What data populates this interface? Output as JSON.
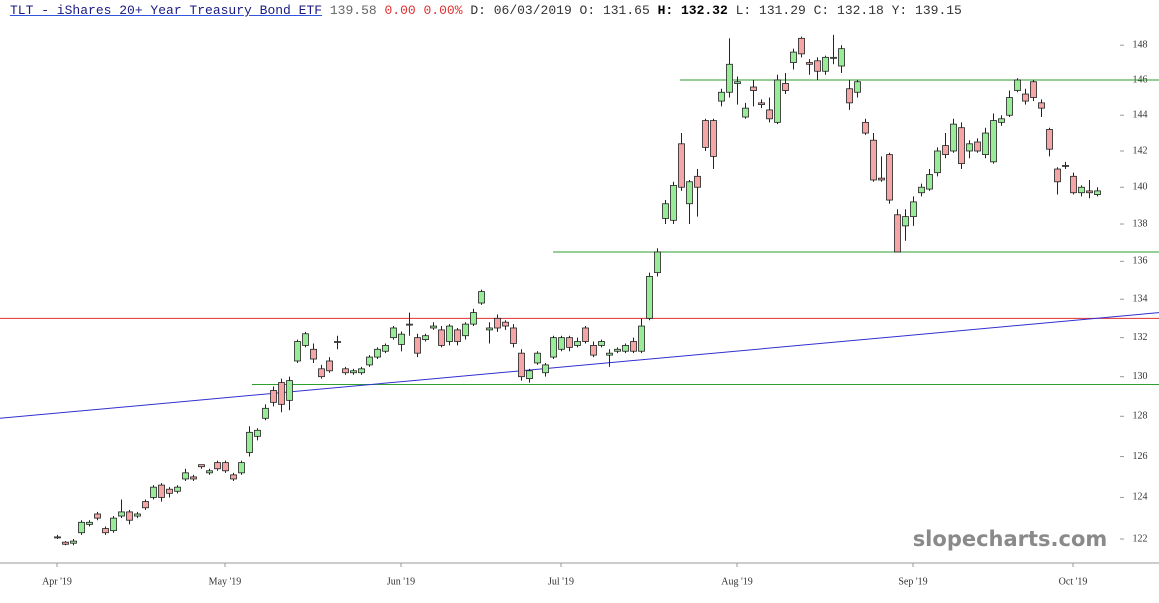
{
  "chart_data": {
    "type": "candlestick",
    "title": "TLT - iShares 20+ Year Treasury Bond ETF",
    "price": "139.58",
    "change": "0.00 0.00%",
    "details_start": "D: 06/03/2019 O: 131.65",
    "details_high": "H: 132.32",
    "details_end": "L: 131.29 C: 132.18 Y: 139.15",
    "watermark": "slopecharts.com",
    "log_y": true,
    "ylim": [
      120.86,
      149
    ],
    "yticks": [
      122,
      124,
      126,
      128,
      130,
      132,
      134,
      136,
      138,
      140,
      142,
      144,
      146,
      148
    ],
    "categories": [
      "Apr '19",
      null,
      null,
      null,
      null,
      null,
      null,
      null,
      null,
      null,
      null,
      null,
      null,
      null,
      null,
      null,
      null,
      null,
      null,
      null,
      null,
      "May '19",
      null,
      null,
      null,
      null,
      null,
      null,
      null,
      null,
      null,
      null,
      null,
      null,
      null,
      null,
      null,
      null,
      null,
      null,
      null,
      null,
      null,
      "Jun '19",
      null,
      null,
      null,
      null,
      null,
      null,
      null,
      null,
      null,
      null,
      null,
      null,
      null,
      null,
      null,
      null,
      null,
      null,
      null,
      "Jul '19",
      null,
      null,
      null,
      null,
      null,
      null,
      null,
      null,
      null,
      null,
      null,
      null,
      null,
      null,
      null,
      null,
      null,
      null,
      null,
      null,
      null,
      "Aug '19",
      null,
      null,
      null,
      null,
      null,
      null,
      null,
      null,
      null,
      null,
      null,
      null,
      null,
      null,
      null,
      null,
      null,
      null,
      null,
      null,
      null,
      "Sep '19",
      null,
      null,
      null,
      null,
      null,
      null,
      null,
      null,
      null,
      null,
      null,
      null,
      null,
      null,
      null,
      null,
      null,
      null,
      null,
      "Oct '19",
      null,
      null,
      null
    ],
    "up_color": "#98ec98",
    "down_color": "#f4a6a6",
    "series": [
      {
        "name": "TLT",
        "open": [
          122.1,
          121.85,
          121.8,
          122.3,
          122.7,
          123.2,
          122.5,
          122.4,
          123.1,
          123.3,
          123.1,
          123.8,
          124.0,
          124.6,
          124.4,
          124.3,
          124.9,
          125.0,
          125.6,
          125.2,
          125.7,
          125.7,
          125.1,
          125.2,
          126.2,
          127.0,
          127.9,
          129.3,
          129.7,
          128.8,
          130.8,
          131.6,
          131.4,
          130.4,
          130.8,
          131.8,
          130.4,
          130.2,
          130.2,
          130.6,
          131.0,
          131.3,
          132.0,
          131.65,
          132.7,
          132.0,
          131.9,
          132.5,
          132.4,
          131.8,
          132.4,
          132.1,
          132.7,
          133.8,
          132.4,
          133.0,
          132.8,
          132.5,
          131.2,
          129.9,
          130.7,
          130.2,
          131.0,
          131.4,
          132.0,
          131.6,
          132.5,
          131.6,
          131.6,
          131.1,
          131.3,
          131.3,
          131.8,
          131.3,
          133.0,
          135.4,
          138.3,
          138.2,
          142.4,
          139.1,
          140.6,
          143.7,
          143.7,
          144.8,
          145.3,
          145.8,
          143.9,
          145.6,
          144.7,
          144.3,
          143.6,
          145.8,
          147.0,
          148.4,
          147.0,
          147.1,
          146.5,
          147.3,
          146.8,
          145.5,
          145.3,
          143.6,
          142.6,
          140.5,
          141.8,
          138.5,
          137.9,
          138.4,
          139.7,
          139.9,
          140.8,
          142.3,
          142.0,
          143.3,
          142.0,
          142.5,
          141.8,
          141.4,
          143.6,
          144.0,
          145.4,
          145.2,
          145.9,
          144.7,
          143.2,
          141.0,
          141.2,
          140.6,
          139.7,
          139.8,
          139.6
        ],
        "high": [
          122.2,
          121.9,
          122.0,
          122.9,
          122.9,
          123.3,
          122.6,
          123.1,
          123.9,
          123.4,
          123.3,
          123.9,
          124.6,
          124.7,
          124.5,
          124.6,
          125.4,
          125.1,
          125.6,
          125.4,
          125.8,
          125.8,
          125.2,
          125.8,
          127.5,
          127.4,
          128.6,
          129.5,
          129.9,
          130.0,
          131.9,
          132.3,
          131.7,
          130.6,
          131.0,
          132.1,
          130.5,
          130.4,
          130.5,
          131.1,
          131.5,
          131.7,
          132.6,
          132.32,
          133.3,
          132.2,
          132.2,
          132.8,
          132.6,
          132.7,
          132.5,
          132.8,
          133.5,
          134.5,
          132.8,
          133.2,
          132.9,
          132.7,
          131.4,
          130.4,
          131.3,
          130.7,
          132.1,
          132.1,
          132.1,
          132.0,
          132.6,
          131.8,
          131.9,
          131.4,
          131.5,
          131.7,
          132.0,
          133.0,
          135.4,
          136.7,
          139.3,
          140.3,
          143.0,
          140.4,
          141.0,
          143.8,
          143.8,
          145.5,
          148.4,
          146.2,
          144.7,
          146.0,
          144.9,
          145.0,
          146.3,
          146.4,
          147.8,
          148.5,
          147.2,
          147.3,
          147.4,
          148.6,
          148.0,
          146.0,
          146.0,
          143.8,
          143.0,
          141.7,
          141.9,
          138.8,
          138.8,
          139.5,
          140.2,
          141.0,
          142.2,
          143.0,
          143.8,
          143.6,
          142.6,
          142.7,
          143.3,
          144.1,
          144.0,
          145.4,
          146.1,
          145.5,
          146.0,
          144.9,
          143.3,
          141.1,
          141.4,
          140.8,
          140.1,
          140.4,
          140.0
        ],
        "low": [
          122.0,
          121.7,
          121.7,
          122.2,
          122.6,
          122.9,
          122.2,
          122.3,
          123.0,
          122.7,
          123.0,
          123.4,
          123.9,
          123.8,
          124.0,
          124.2,
          124.8,
          124.8,
          125.4,
          125.1,
          125.3,
          125.2,
          124.8,
          125.1,
          126.0,
          126.8,
          127.8,
          128.5,
          128.2,
          128.3,
          130.7,
          131.5,
          130.7,
          129.9,
          130.2,
          131.4,
          130.1,
          130.1,
          130.1,
          130.5,
          130.9,
          131.2,
          131.9,
          131.29,
          132.1,
          131.0,
          131.8,
          132.4,
          131.5,
          131.6,
          131.6,
          131.9,
          132.6,
          133.7,
          131.7,
          132.3,
          132.4,
          131.5,
          129.8,
          129.7,
          130.6,
          130.0,
          130.9,
          131.3,
          131.3,
          131.5,
          131.7,
          131.0,
          131.5,
          130.5,
          131.2,
          131.2,
          131.2,
          131.2,
          132.9,
          135.2,
          138.0,
          138.0,
          139.8,
          138.0,
          138.4,
          142.0,
          141.0,
          144.5,
          145.0,
          144.6,
          143.8,
          144.5,
          144.4,
          143.6,
          143.5,
          145.2,
          146.6,
          147.3,
          146.3,
          146.0,
          146.3,
          146.9,
          146.4,
          144.3,
          145.0,
          142.9,
          140.3,
          140.3,
          139.1,
          136.5,
          137.1,
          137.9,
          139.5,
          139.8,
          140.6,
          141.6,
          141.9,
          141.0,
          141.6,
          141.9,
          141.6,
          141.3,
          143.4,
          143.9,
          145.3,
          144.6,
          144.8,
          143.9,
          141.7,
          139.6,
          141.0,
          139.6,
          139.5,
          139.4,
          139.5
        ],
        "close": [
          122.1,
          121.75,
          121.9,
          122.8,
          122.8,
          123.0,
          122.3,
          123.0,
          123.3,
          122.9,
          123.2,
          123.5,
          124.5,
          124.0,
          124.2,
          124.5,
          125.2,
          124.9,
          125.5,
          125.3,
          125.4,
          125.3,
          124.9,
          125.7,
          127.2,
          127.3,
          128.4,
          128.7,
          128.6,
          129.8,
          131.8,
          132.2,
          130.9,
          130.0,
          130.3,
          131.8,
          130.2,
          130.3,
          130.4,
          131.0,
          131.4,
          131.6,
          132.5,
          132.18,
          132.7,
          131.2,
          132.1,
          132.6,
          131.6,
          132.6,
          131.8,
          132.7,
          133.3,
          134.4,
          132.5,
          132.5,
          132.6,
          131.7,
          130.0,
          130.3,
          131.2,
          130.6,
          132.0,
          132.0,
          131.5,
          131.8,
          131.8,
          131.1,
          131.8,
          131.2,
          131.4,
          131.6,
          131.3,
          132.6,
          135.2,
          136.5,
          139.1,
          140.1,
          140.0,
          140.3,
          140.0,
          142.2,
          141.7,
          145.3,
          146.9,
          145.9,
          144.4,
          145.4,
          144.6,
          143.8,
          146.0,
          145.4,
          147.6,
          147.5,
          146.9,
          146.5,
          147.3,
          147.3,
          147.8,
          144.7,
          145.9,
          143.0,
          140.4,
          140.4,
          139.3,
          136.5,
          138.4,
          139.2,
          140.0,
          140.7,
          142.0,
          141.8,
          143.5,
          141.3,
          142.4,
          142.0,
          143.0,
          143.7,
          143.8,
          145.0,
          146.0,
          144.8,
          145.0,
          144.4,
          142.1,
          140.3,
          141.2,
          139.7,
          140.0,
          139.7,
          139.8
        ]
      }
    ],
    "reference_lines": [
      {
        "value": 146,
        "color": "#2e9e2e"
      },
      {
        "value": 136.5,
        "color": "#2e9e2e"
      },
      {
        "value": 129.6,
        "color": "#2e9e2e"
      },
      {
        "value": 133,
        "color": "#e03030"
      }
    ],
    "trend_line": {
      "color": "#3030d0",
      "values": [
        127.9,
        133.3
      ]
    }
  }
}
